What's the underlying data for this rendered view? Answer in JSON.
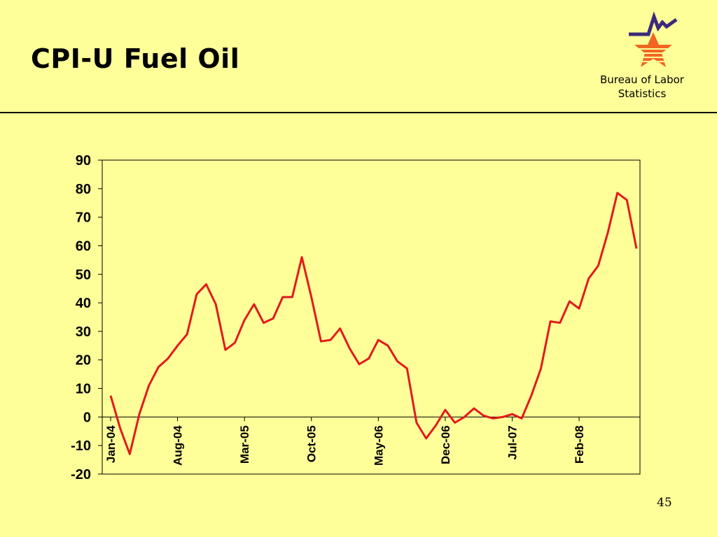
{
  "slide": {
    "title": "CPI-U Fuel Oil",
    "org_name": "Bureau of Labor Statistics",
    "page_number": "45",
    "logo_icon": "bls-star-logo-icon"
  },
  "colors": {
    "background": "#ffff99",
    "line": "#e41a1a",
    "logo_orange": "#f26522",
    "logo_navy": "#3b2a7a"
  },
  "chart_data": {
    "type": "line",
    "title": "",
    "xlabel": "",
    "ylabel": "",
    "ylim": [
      -20,
      90
    ],
    "yticks": [
      90,
      80,
      70,
      60,
      50,
      40,
      30,
      20,
      10,
      0,
      -10,
      -20
    ],
    "grid": false,
    "legend": "none",
    "xtick_labels": [
      "Jan-04",
      "Aug-04",
      "Mar-05",
      "Oct-05",
      "May-06",
      "Dec-06",
      "Jul-07",
      "Feb-08"
    ],
    "xtick_indices": [
      0,
      7,
      14,
      21,
      28,
      35,
      42,
      49
    ],
    "series": [
      {
        "name": "",
        "start": "Jan-04",
        "frequency": "monthly",
        "values": [
          7.5,
          -4,
          -13,
          1,
          11,
          17.5,
          20.5,
          25,
          29,
          43,
          46.5,
          39.5,
          23.5,
          26,
          34,
          39.5,
          33,
          34.5,
          42,
          42,
          56,
          42,
          26.5,
          27,
          31,
          24,
          18.5,
          20.5,
          27,
          25,
          19.5,
          17,
          -2,
          -7.5,
          -3,
          2.5,
          -2,
          0,
          3,
          0.5,
          -0.5,
          0,
          1,
          -0.5,
          7.5,
          17,
          33.5,
          33,
          40.5,
          38,
          48.5,
          53,
          64.5,
          78.5,
          76,
          59
        ]
      }
    ]
  }
}
